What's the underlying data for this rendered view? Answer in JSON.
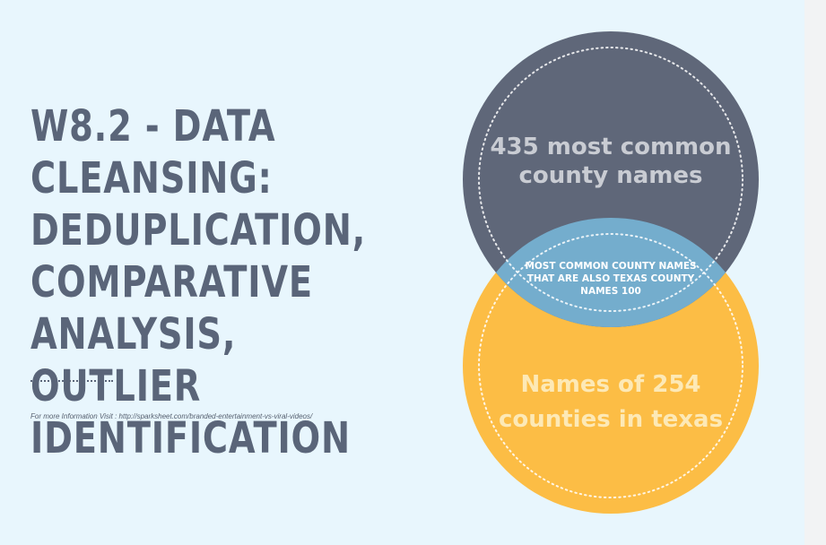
{
  "slide": {
    "title": "W8.2 - DATA\nCLEANSING:\nDEDUPLICATION,\nCOMPARATIVE\nANALYSIS,\nOUTLIER\nIDENTIFICATION",
    "footnote": "For more Information Visit : http://sparksheet.com/branded-entertainment-vs-viral-videos/"
  },
  "venn": {
    "top_circle": {
      "line1": "435 most common",
      "line2": "county names",
      "color": "#5f6779"
    },
    "bottom_circle": {
      "line1": "Names of 254",
      "line2": "counties in texas",
      "color": "#fcbd45"
    },
    "intersection": {
      "line1": "MOST COMMON COUNTY NAMES",
      "line2": "THAT ARE ALSO TEXAS COUNTY",
      "line3": "NAMES 100",
      "color": "#74adcd"
    }
  },
  "colors": {
    "background": "#e8f6fd",
    "title_text": "#5a6579",
    "top_text": "#c9ccd3",
    "bottom_text": "#fde9b6",
    "intersection_text": "#ffffff"
  }
}
